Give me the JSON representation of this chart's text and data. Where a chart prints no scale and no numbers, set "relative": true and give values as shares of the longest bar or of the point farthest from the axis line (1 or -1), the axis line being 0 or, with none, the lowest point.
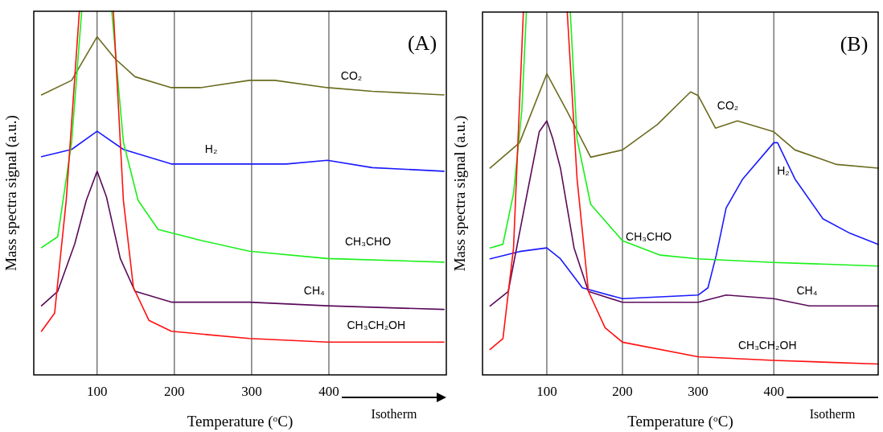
{
  "chart_data": [
    {
      "type": "line",
      "title": "(A)",
      "xlabel": "Temperature ($^{o}$C)",
      "ylabel": "Mass spectra signal (a.u.)",
      "relative": true,
      "xlim": [
        18,
        552
      ],
      "xticks": [
        100,
        200,
        300,
        400
      ],
      "grid": "x",
      "tick_labels": "x",
      "annotations": [
        "Isotherm"
      ],
      "series": [
        {
          "name": "CO₂",
          "color": "#6b6b1f",
          "x": [
            28,
            67,
            100,
            123,
            149,
            196,
            234,
            297,
            330,
            398,
            456,
            549
          ],
          "values": [
            0.77,
            0.81,
            0.93,
            0.87,
            0.82,
            0.79,
            0.79,
            0.81,
            0.81,
            0.79,
            0.78,
            0.77
          ]
        },
        {
          "name": "H₂",
          "color": "#1a1aff",
          "x": [
            28,
            67,
            100,
            134,
            196,
            297,
            345,
            398,
            456,
            549
          ],
          "values": [
            0.6,
            0.62,
            0.67,
            0.62,
            0.58,
            0.58,
            0.58,
            0.59,
            0.57,
            0.56
          ]
        },
        {
          "name": "CH₃CHO",
          "color": "#19f019",
          "x": [
            28,
            49,
            67,
            80,
            100,
            119,
            134,
            153,
            179,
            234,
            297,
            398,
            549
          ],
          "values": [
            0.35,
            0.38,
            0.64,
            1,
            null,
            1,
            0.64,
            0.48,
            0.4,
            0.37,
            0.34,
            0.32,
            0.31
          ]
        },
        {
          "name": "CH₄",
          "color": "#5a0a5a",
          "x": [
            28,
            49,
            71,
            86,
            100,
            112,
            130,
            149,
            196,
            297,
            398,
            549
          ],
          "values": [
            0.19,
            0.23,
            0.36,
            0.48,
            0.56,
            0.49,
            0.32,
            0.23,
            0.2,
            0.2,
            0.19,
            0.18
          ]
        },
        {
          "name": "CH₃CH₂OH",
          "color": "#ff1010",
          "x": [
            28,
            45,
            60,
            77,
            100,
            121,
            134,
            147,
            167,
            196,
            297,
            398,
            549
          ],
          "values": [
            0.12,
            0.17,
            0.48,
            1,
            null,
            1,
            0.48,
            0.24,
            0.15,
            0.12,
            0.1,
            0.09,
            0.09
          ]
        }
      ]
    },
    {
      "type": "line",
      "title": "(B)",
      "xlabel": "Temperature ($^{o}$C)",
      "ylabel": "Mass spectra signal (a.u.)",
      "relative": true,
      "xlim": [
        15,
        538
      ],
      "xticks": [
        100,
        200,
        300,
        400
      ],
      "grid": "x",
      "tick_labels": "x",
      "annotations": [
        "Isotherm"
      ],
      "series": [
        {
          "name": "CO₂",
          "color": "#6b6b1f",
          "x": [
            25,
            64,
            100,
            126,
            158,
            200,
            246,
            290,
            300,
            323,
            352,
            400,
            428,
            483,
            538
          ],
          "values": [
            0.57,
            0.64,
            0.83,
            0.73,
            0.6,
            0.62,
            0.69,
            0.78,
            0.77,
            0.68,
            0.7,
            0.67,
            0.62,
            0.58,
            0.57
          ]
        },
        {
          "name": "H₂",
          "color": "#1a1aff",
          "x": [
            25,
            64,
            100,
            118,
            147,
            200,
            300,
            313,
            324,
            337,
            359,
            400,
            405,
            428,
            465,
            501,
            538
          ],
          "values": [
            0.32,
            0.34,
            0.35,
            0.32,
            0.24,
            0.21,
            0.22,
            0.24,
            0.33,
            0.46,
            0.54,
            0.64,
            0.64,
            0.54,
            0.43,
            0.39,
            0.36
          ]
        },
        {
          "name": "CH₃CHO",
          "color": "#19f019",
          "x": [
            25,
            42,
            56,
            67,
            73,
            100,
            131,
            140,
            158,
            200,
            250,
            300,
            400,
            538
          ],
          "values": [
            0.35,
            0.36,
            0.5,
            0.73,
            1,
            null,
            1,
            0.65,
            0.47,
            0.37,
            0.33,
            0.32,
            0.31,
            0.3
          ]
        },
        {
          "name": "CH₄",
          "color": "#5a0a5a",
          "x": [
            25,
            49,
            74,
            90,
            100,
            108,
            118,
            136,
            155,
            200,
            300,
            337,
            400,
            447,
            538
          ],
          "values": [
            0.19,
            0.23,
            0.5,
            0.67,
            0.7,
            0.65,
            0.57,
            0.35,
            0.23,
            0.2,
            0.2,
            0.22,
            0.21,
            0.19,
            0.19
          ]
        },
        {
          "name": "CH₃CH₂OH",
          "color": "#ff1010",
          "x": [
            25,
            42,
            56,
            69,
            100,
            127,
            140,
            155,
            177,
            200,
            300,
            400,
            538
          ],
          "values": [
            0.07,
            0.1,
            0.35,
            1,
            null,
            1,
            0.54,
            0.23,
            0.13,
            0.09,
            0.05,
            0.04,
            0.03
          ]
        }
      ]
    }
  ]
}
